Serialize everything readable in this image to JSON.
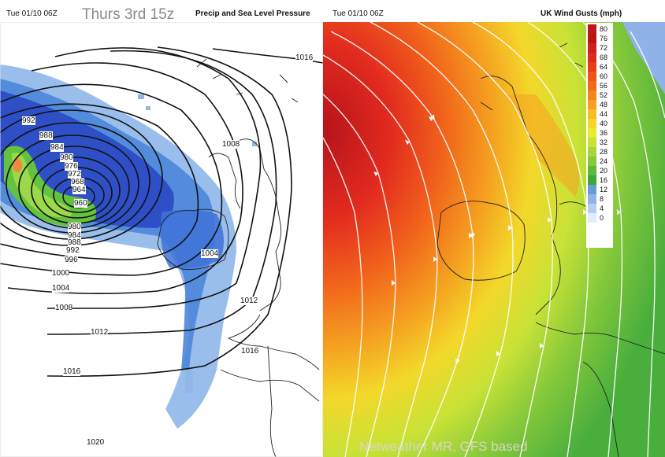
{
  "left_map": {
    "header_time": "Tue 01/10 06Z",
    "overlay_title": "Thurs 3rd 15z",
    "header_title": "Precip and Sea Level Pressure",
    "isobar_labels": [
      "1016",
      "1008",
      "992",
      "988",
      "984",
      "980",
      "976",
      "972",
      "968",
      "964",
      "960",
      "980",
      "984",
      "988",
      "992",
      "996",
      "1000",
      "1004",
      "1004",
      "1008",
      "1012",
      "1012",
      "1016",
      "1016",
      "1020"
    ]
  },
  "right_map": {
    "header_time": "Tue 01/10 06Z",
    "header_title": "UK Wind Gusts (mph)",
    "caption": "Netweather MR, GFS based"
  },
  "legend": {
    "units": "mph",
    "levels": [
      "80",
      "76",
      "72",
      "68",
      "64",
      "60",
      "56",
      "52",
      "48",
      "44",
      "40",
      "36",
      "32",
      "28",
      "24",
      "20",
      "16",
      "12",
      "8",
      "4",
      "0"
    ],
    "colors": [
      "#c0141e",
      "#b51717",
      "#d11f1f",
      "#e02a1e",
      "#e83c1a",
      "#ef5419",
      "#f16b1b",
      "#f3851e",
      "#f5a020",
      "#f6bf25",
      "#f3d82a",
      "#e9eb31",
      "#c8e236",
      "#a8d639",
      "#86c93b",
      "#5fb83c",
      "#3fa63c",
      "#6a9bd9",
      "#8fb3e8",
      "#b7cdf2",
      "#e2ebfa"
    ],
    "colors_meta": "palette"
  }
}
